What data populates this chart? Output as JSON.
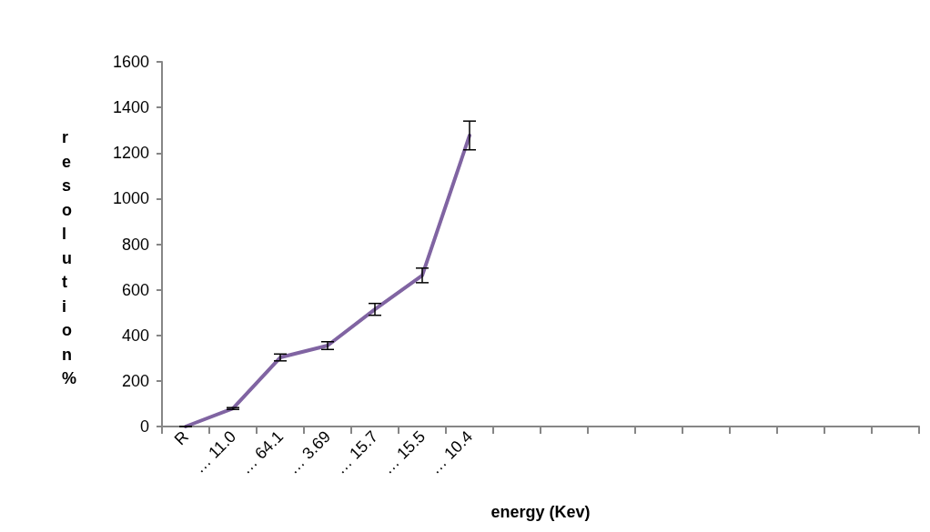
{
  "chart_data": {
    "type": "line",
    "xlabel": "energy (Kev)",
    "ylabel": "resolution %",
    "categories": [
      "R",
      "… 11.0",
      "… 64.1",
      "… 3.69",
      "… 15.7",
      "… 15.5",
      "… 10.4",
      null,
      null,
      null,
      null,
      null,
      null,
      null,
      null,
      null
    ],
    "series": [
      {
        "color": "#8064a2",
        "values": [
          0,
          79,
          303,
          355,
          514,
          663,
          1277,
          null,
          null,
          null,
          null,
          null,
          null,
          null,
          null,
          null
        ],
        "errors": [
          0,
          4,
          15,
          17,
          26,
          32,
          63,
          null,
          null,
          null,
          null,
          null,
          null,
          null,
          null,
          null
        ]
      }
    ],
    "ylim": [
      0,
      1600
    ],
    "yticks": [
      0,
      200,
      400,
      600,
      800,
      1000,
      1200,
      1400,
      1600
    ],
    "grid": false,
    "marker": "none",
    "line_style": "solid"
  }
}
